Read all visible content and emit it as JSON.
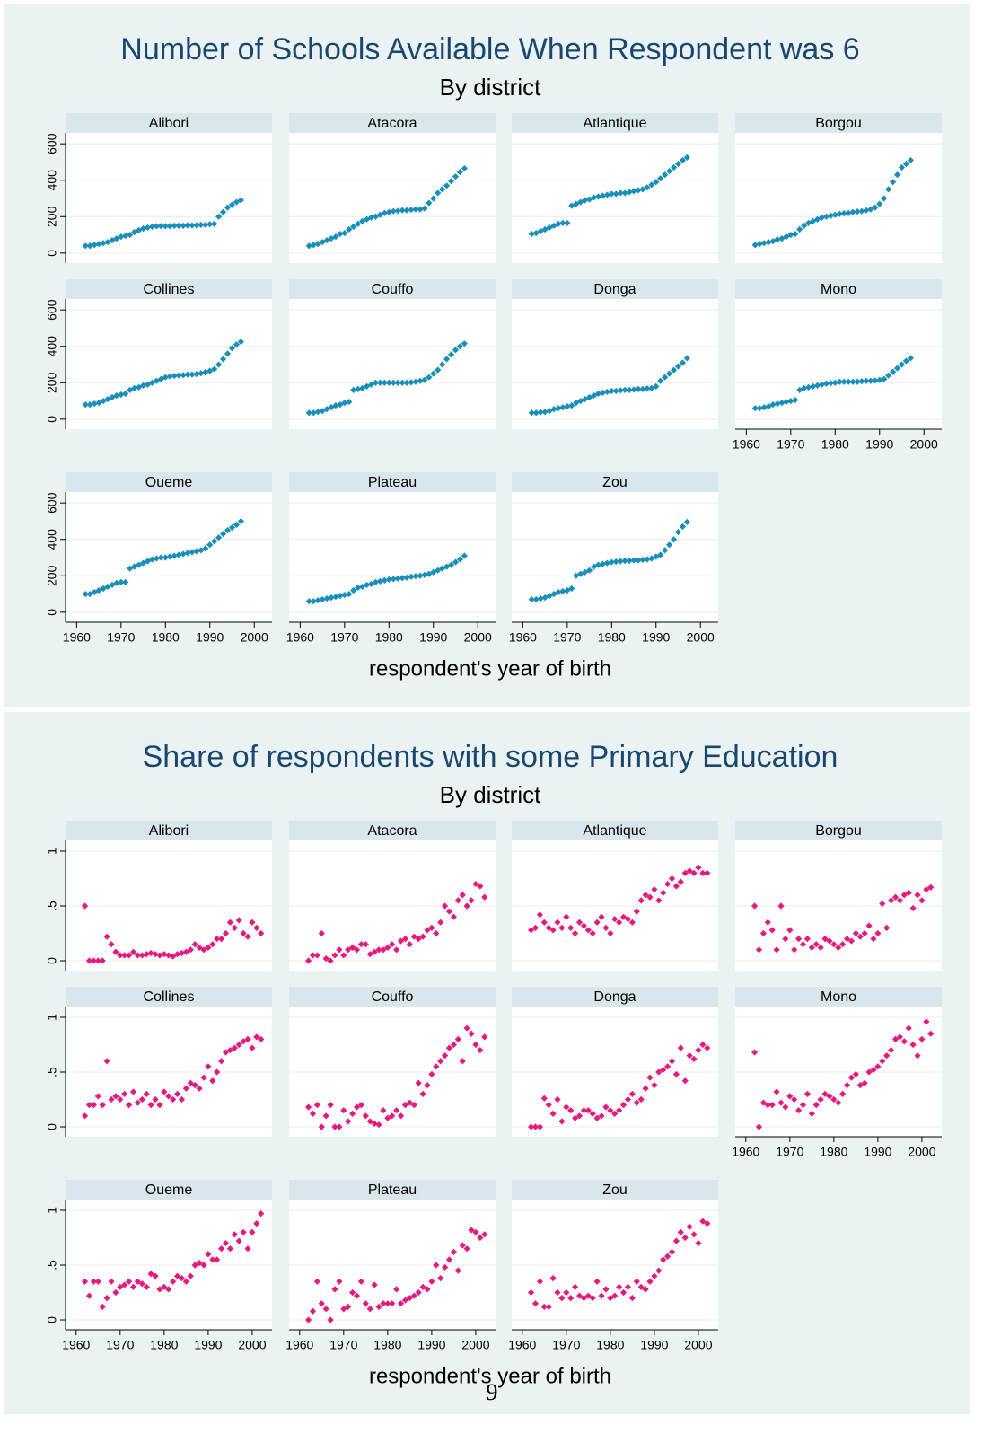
{
  "chart_data": [
    {
      "type": "scatter",
      "title": "Number of Schools Available When Respondent was 6",
      "subtitle": "By district",
      "x_label": "respondent's year of birth",
      "color": "#1a8fb9",
      "x": [
        1962,
        1963,
        1964,
        1965,
        1966,
        1967,
        1968,
        1969,
        1970,
        1971,
        1972,
        1973,
        1974,
        1975,
        1976,
        1977,
        1978,
        1979,
        1980,
        1981,
        1982,
        1983,
        1984,
        1985,
        1986,
        1987,
        1988,
        1989,
        1990,
        1991,
        1992,
        1993,
        1994,
        1995,
        1996,
        1997
      ],
      "xlim": [
        1957.5,
        2004
      ],
      "xticks": [
        1960,
        1970,
        1980,
        1990,
        2000
      ],
      "ylim": [
        -55,
        660
      ],
      "yticks": [
        0,
        200,
        400,
        600
      ],
      "grid": true,
      "series": [
        {
          "name": "Alibori",
          "values": [
            40,
            40,
            45,
            50,
            55,
            60,
            70,
            80,
            90,
            95,
            100,
            115,
            125,
            135,
            140,
            145,
            148,
            148,
            148,
            148,
            150,
            150,
            150,
            152,
            152,
            153,
            155,
            155,
            158,
            160,
            200,
            225,
            250,
            265,
            280,
            290
          ]
        },
        {
          "name": "Atacora",
          "values": [
            40,
            45,
            50,
            60,
            70,
            80,
            90,
            105,
            110,
            130,
            145,
            160,
            175,
            185,
            195,
            200,
            210,
            220,
            225,
            230,
            232,
            235,
            235,
            238,
            240,
            240,
            245,
            275,
            300,
            330,
            350,
            370,
            395,
            420,
            445,
            465
          ]
        },
        {
          "name": "Atlantique",
          "values": [
            105,
            110,
            120,
            130,
            140,
            150,
            160,
            165,
            165,
            260,
            270,
            280,
            290,
            295,
            305,
            310,
            315,
            320,
            325,
            325,
            330,
            330,
            335,
            340,
            345,
            350,
            360,
            375,
            390,
            410,
            430,
            450,
            470,
            490,
            510,
            525
          ]
        },
        {
          "name": "Borgou",
          "values": [
            45,
            50,
            55,
            60,
            65,
            75,
            80,
            90,
            100,
            105,
            130,
            150,
            165,
            175,
            185,
            195,
            200,
            205,
            210,
            215,
            218,
            220,
            225,
            228,
            230,
            235,
            240,
            250,
            270,
            300,
            350,
            390,
            430,
            470,
            490,
            510
          ]
        },
        {
          "name": "Collines",
          "values": [
            80,
            80,
            85,
            90,
            100,
            110,
            120,
            130,
            135,
            140,
            160,
            170,
            175,
            185,
            190,
            200,
            210,
            220,
            230,
            235,
            238,
            240,
            242,
            245,
            245,
            248,
            252,
            258,
            265,
            275,
            300,
            330,
            360,
            390,
            410,
            425
          ]
        },
        {
          "name": "Couffo",
          "values": [
            35,
            35,
            40,
            45,
            55,
            65,
            75,
            80,
            90,
            95,
            160,
            165,
            170,
            180,
            190,
            200,
            200,
            200,
            200,
            200,
            200,
            200,
            200,
            202,
            205,
            210,
            215,
            230,
            250,
            270,
            300,
            330,
            355,
            380,
            400,
            415
          ]
        },
        {
          "name": "Donga",
          "values": [
            35,
            35,
            38,
            40,
            45,
            55,
            60,
            65,
            70,
            75,
            90,
            100,
            110,
            120,
            130,
            140,
            145,
            150,
            155,
            155,
            158,
            160,
            160,
            162,
            165,
            165,
            168,
            170,
            180,
            210,
            230,
            250,
            270,
            290,
            310,
            335
          ]
        },
        {
          "name": "Mono",
          "values": [
            60,
            60,
            65,
            70,
            80,
            85,
            90,
            95,
            100,
            105,
            160,
            170,
            175,
            180,
            185,
            190,
            195,
            198,
            200,
            205,
            205,
            205,
            205,
            205,
            208,
            210,
            210,
            212,
            215,
            220,
            240,
            260,
            280,
            300,
            320,
            335
          ]
        },
        {
          "name": "Oueme",
          "values": [
            100,
            100,
            110,
            120,
            130,
            140,
            150,
            160,
            165,
            165,
            240,
            250,
            260,
            270,
            280,
            290,
            295,
            300,
            300,
            305,
            310,
            315,
            320,
            325,
            330,
            335,
            340,
            350,
            370,
            390,
            410,
            430,
            450,
            465,
            480,
            500
          ]
        },
        {
          "name": "Plateau",
          "values": [
            60,
            60,
            65,
            70,
            75,
            80,
            85,
            90,
            95,
            100,
            120,
            135,
            140,
            150,
            155,
            165,
            170,
            175,
            180,
            182,
            185,
            188,
            190,
            195,
            198,
            200,
            205,
            210,
            220,
            230,
            240,
            250,
            260,
            275,
            290,
            310
          ]
        },
        {
          "name": "Zou",
          "values": [
            70,
            70,
            75,
            80,
            90,
            100,
            110,
            115,
            120,
            130,
            200,
            210,
            220,
            230,
            250,
            260,
            265,
            270,
            275,
            278,
            280,
            282,
            282,
            285,
            285,
            288,
            290,
            295,
            305,
            315,
            340,
            370,
            400,
            440,
            470,
            495
          ]
        }
      ]
    },
    {
      "type": "scatter",
      "title": "Share of respondents with some Primary Education",
      "subtitle": "By district",
      "x_label": "respondent's year of birth",
      "color": "#e6197e",
      "x": [
        1962,
        1963,
        1964,
        1965,
        1966,
        1967,
        1968,
        1969,
        1970,
        1971,
        1972,
        1973,
        1974,
        1975,
        1976,
        1977,
        1978,
        1979,
        1980,
        1981,
        1982,
        1983,
        1984,
        1985,
        1986,
        1987,
        1988,
        1989,
        1990,
        1991,
        1992,
        1993,
        1994,
        1995,
        1996,
        1997,
        1998,
        1999,
        2000,
        2001,
        2002
      ],
      "xlim": [
        1957.6,
        2004.5
      ],
      "xticks": [
        1960,
        1970,
        1980,
        1990,
        2000
      ],
      "ylim": [
        -0.09,
        1.098
      ],
      "yticks": [
        0,
        {
          "value": 0.5,
          "label": ".5"
        },
        1
      ],
      "grid": true,
      "series": [
        {
          "name": "Alibori",
          "values": [
            0.5,
            0,
            0,
            0,
            0,
            0.22,
            0.15,
            0.08,
            0.05,
            0.05,
            0.05,
            0.08,
            0.05,
            0.05,
            0.06,
            0.07,
            0.06,
            0.05,
            0.06,
            0.05,
            0.04,
            0.06,
            0.07,
            0.08,
            0.1,
            0.15,
            0.12,
            0.1,
            0.12,
            0.15,
            0.2,
            0.2,
            0.25,
            0.35,
            0.3,
            0.37,
            0.25,
            0.22,
            0.35,
            0.3,
            0.25
          ]
        },
        {
          "name": "Atacora",
          "values": [
            0,
            0.05,
            0.05,
            0.25,
            0.02,
            0,
            0.05,
            0.1,
            0.05,
            0.1,
            0.12,
            0.1,
            0.15,
            0.15,
            0.06,
            0.08,
            0.1,
            0.1,
            0.12,
            0.15,
            0.1,
            0.18,
            0.2,
            0.15,
            0.22,
            0.2,
            0.22,
            0.28,
            0.3,
            0.25,
            0.35,
            0.5,
            0.45,
            0.4,
            0.55,
            0.6,
            0.5,
            0.55,
            0.7,
            0.68,
            0.58
          ]
        },
        {
          "name": "Atlantique",
          "values": [
            0.28,
            0.3,
            0.42,
            0.35,
            0.3,
            0.28,
            0.35,
            0.3,
            0.4,
            0.3,
            0.25,
            0.35,
            0.32,
            0.28,
            0.25,
            0.35,
            0.4,
            0.3,
            0.25,
            0.38,
            0.35,
            0.4,
            0.38,
            0.35,
            0.45,
            0.55,
            0.6,
            0.58,
            0.65,
            0.55,
            0.62,
            0.7,
            0.75,
            0.68,
            0.72,
            0.8,
            0.82,
            0.8,
            0.85,
            0.8,
            0.8
          ]
        },
        {
          "name": "Borgou",
          "values": [
            0.5,
            0.1,
            0.25,
            0.35,
            0.28,
            0.1,
            0.5,
            0.2,
            0.28,
            0.1,
            0.2,
            0.15,
            0.2,
            0.12,
            0.15,
            0.12,
            0.2,
            0.18,
            0.15,
            0.12,
            0.15,
            0.2,
            0.18,
            0.25,
            0.22,
            0.25,
            0.32,
            0.2,
            0.25,
            0.52,
            0.3,
            0.55,
            0.58,
            0.55,
            0.6,
            0.62,
            0.48,
            0.6,
            0.55,
            0.65,
            0.67
          ]
        },
        {
          "name": "Collines",
          "values": [
            0.1,
            0.2,
            0.2,
            0.28,
            0.2,
            0.6,
            0.25,
            0.28,
            0.25,
            0.3,
            0.2,
            0.32,
            0.22,
            0.25,
            0.3,
            0.2,
            0.25,
            0.2,
            0.32,
            0.28,
            0.25,
            0.3,
            0.25,
            0.35,
            0.4,
            0.38,
            0.35,
            0.45,
            0.55,
            0.42,
            0.5,
            0.6,
            0.68,
            0.7,
            0.72,
            0.75,
            0.78,
            0.8,
            0.72,
            0.82,
            0.8
          ]
        },
        {
          "name": "Couffo",
          "values": [
            0.18,
            0.12,
            0.2,
            0,
            0.1,
            0.2,
            0,
            0,
            0.15,
            0.05,
            0.12,
            0.18,
            0.2,
            0.1,
            0.05,
            0.03,
            0.02,
            0.15,
            0.08,
            0.1,
            0.15,
            0.1,
            0.2,
            0.22,
            0.2,
            0.4,
            0.3,
            0.38,
            0.48,
            0.55,
            0.6,
            0.65,
            0.72,
            0.75,
            0.8,
            0.6,
            0.9,
            0.85,
            0.75,
            0.7,
            0.82
          ]
        },
        {
          "name": "Donga",
          "values": [
            0,
            0,
            0,
            0.26,
            0.2,
            0.12,
            0.25,
            0.05,
            0.18,
            0.15,
            0.08,
            0.1,
            0.15,
            0.15,
            0.12,
            0.08,
            0.1,
            0.18,
            0.15,
            0.12,
            0.15,
            0.2,
            0.25,
            0.3,
            0.22,
            0.25,
            0.35,
            0.45,
            0.38,
            0.5,
            0.52,
            0.55,
            0.6,
            0.48,
            0.72,
            0.42,
            0.65,
            0.62,
            0.7,
            0.75,
            0.72
          ]
        },
        {
          "name": "Mono",
          "values": [
            0.68,
            0,
            0.22,
            0.2,
            0.2,
            0.32,
            0.22,
            0.18,
            0.28,
            0.25,
            0.15,
            0.2,
            0.3,
            0.12,
            0.2,
            0.25,
            0.3,
            0.28,
            0.25,
            0.22,
            0.3,
            0.38,
            0.45,
            0.48,
            0.38,
            0.4,
            0.5,
            0.52,
            0.55,
            0.6,
            0.65,
            0.7,
            0.8,
            0.82,
            0.78,
            0.9,
            0.75,
            0.65,
            0.8,
            0.96,
            0.85
          ]
        },
        {
          "name": "Oueme",
          "values": [
            0.35,
            0.22,
            0.35,
            0.35,
            0.12,
            0.2,
            0.35,
            0.25,
            0.3,
            0.32,
            0.35,
            0.3,
            0.35,
            0.33,
            0.3,
            0.42,
            0.4,
            0.28,
            0.3,
            0.28,
            0.35,
            0.4,
            0.38,
            0.35,
            0.4,
            0.5,
            0.52,
            0.5,
            0.6,
            0.55,
            0.55,
            0.65,
            0.7,
            0.65,
            0.78,
            0.72,
            0.8,
            0.65,
            0.8,
            0.88,
            0.97
          ]
        },
        {
          "name": "Plateau",
          "values": [
            0,
            0.08,
            0.35,
            0.15,
            0.1,
            0,
            0.28,
            0.35,
            0.1,
            0.12,
            0.25,
            0.22,
            0.35,
            0.15,
            0.1,
            0.32,
            0.12,
            0.15,
            0.15,
            0.15,
            0.28,
            0.15,
            0.18,
            0.2,
            0.22,
            0.25,
            0.3,
            0.28,
            0.35,
            0.5,
            0.38,
            0.48,
            0.55,
            0.62,
            0.45,
            0.68,
            0.65,
            0.82,
            0.8,
            0.75,
            0.78
          ]
        },
        {
          "name": "Zou",
          "values": [
            0.25,
            0.15,
            0.35,
            0.12,
            0.12,
            0.38,
            0.25,
            0.2,
            0.25,
            0.2,
            0.3,
            0.22,
            0.2,
            0.22,
            0.2,
            0.35,
            0.22,
            0.28,
            0.2,
            0.22,
            0.3,
            0.25,
            0.3,
            0.2,
            0.35,
            0.3,
            0.28,
            0.35,
            0.4,
            0.45,
            0.55,
            0.58,
            0.62,
            0.72,
            0.8,
            0.75,
            0.85,
            0.78,
            0.7,
            0.9,
            0.88
          ]
        }
      ]
    }
  ],
  "page_number": "9"
}
